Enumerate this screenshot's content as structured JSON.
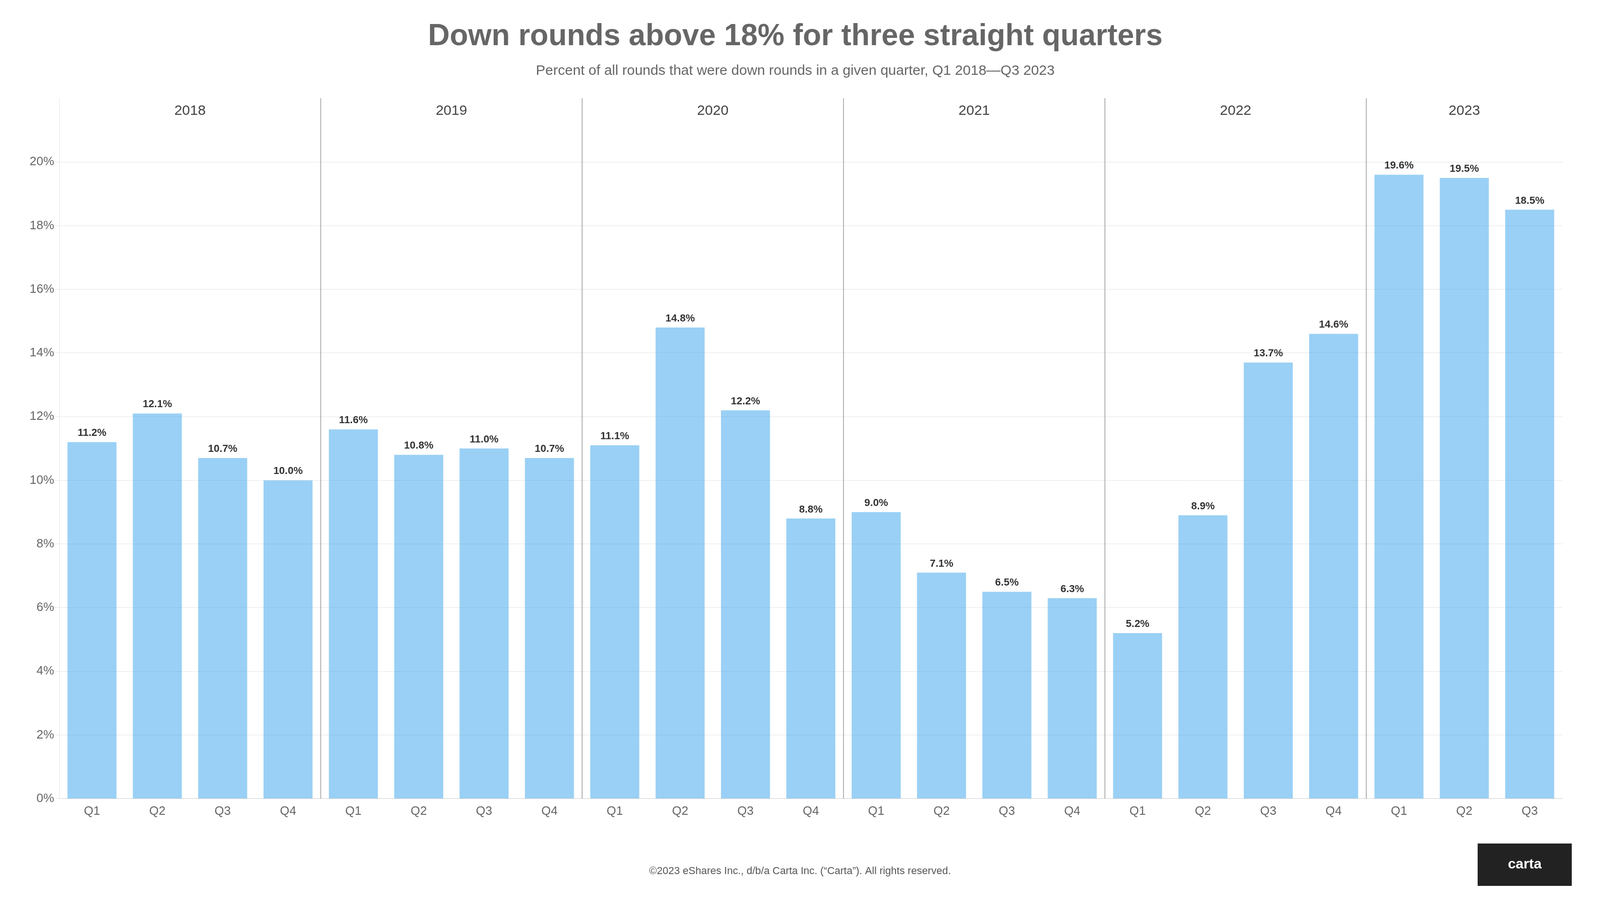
{
  "chart_data": {
    "type": "bar",
    "title": "Down rounds above 18% for three straight quarters",
    "subtitle": "Percent of all rounds that were down rounds in a given quarter, Q1 2018—Q3 2023",
    "footer": "©2023 eShares Inc., d/b/a Carta Inc. (“Carta”). All rights reserved.",
    "logo": "carta",
    "annotations": [
      "2018",
      "2019",
      "2020",
      "2021",
      "2022",
      "2023"
    ],
    "categories": [
      "Q1",
      "Q2",
      "Q3",
      "Q4",
      "Q1",
      "Q2",
      "Q3",
      "Q4",
      "Q1",
      "Q2",
      "Q3",
      "Q4",
      "Q1",
      "Q2",
      "Q3",
      "Q4",
      "Q1",
      "Q2",
      "Q3",
      "Q4",
      "Q1",
      "Q2",
      "Q3"
    ],
    "values": [
      11.2,
      12.1,
      10.7,
      10.0,
      11.6,
      10.8,
      11.0,
      10.7,
      11.1,
      14.8,
      12.2,
      8.8,
      9.0,
      7.1,
      6.5,
      6.3,
      5.2,
      8.9,
      13.7,
      14.6,
      19.6,
      19.5,
      18.5
    ],
    "value_labels": [
      "11.2%",
      "12.1%",
      "10.7%",
      "10.0%",
      "11.6%",
      "10.8%",
      "11.0%",
      "10.7%",
      "11.1%",
      "14.8%",
      "12.2%",
      "8.8%",
      "9.0%",
      "7.1%",
      "6.5%",
      "6.3%",
      "5.2%",
      "8.9%",
      "13.7%",
      "14.6%",
      "19.6%",
      "19.5%",
      "18.5%"
    ],
    "data_labels": true,
    "ylim": [
      0,
      22
    ],
    "yticks": [
      {
        "value": 0,
        "label": "0%"
      },
      {
        "value": 2,
        "label": "2%"
      },
      {
        "value": 4,
        "label": "4%"
      },
      {
        "value": 6,
        "label": "6%"
      },
      {
        "value": 8,
        "label": "8%"
      },
      {
        "value": 10,
        "label": "10%"
      },
      {
        "value": 12,
        "label": "12%"
      },
      {
        "value": 14,
        "label": "14%"
      },
      {
        "value": 16,
        "label": "16%"
      },
      {
        "value": 18,
        "label": "18%"
      },
      {
        "value": 20,
        "label": "20%"
      }
    ],
    "grid": true
  }
}
